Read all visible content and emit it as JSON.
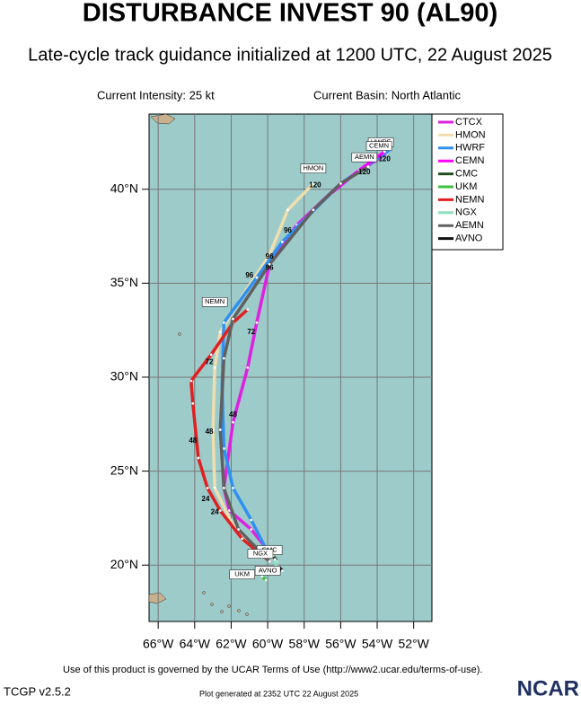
{
  "header": {
    "title": "DISTURBANCE INVEST 90 (AL90)",
    "subtitle": "Late-cycle track guidance initialized at 1200 UTC, 22 August 2025",
    "intensity": "Current Intensity: 25 kt",
    "basin": "Current Basin: North Atlantic"
  },
  "map": {
    "xlim": [
      -66.5,
      -51
    ],
    "ylim": [
      17,
      44
    ],
    "xticks": [
      {
        "value": -66,
        "label": "66°W"
      },
      {
        "value": -64,
        "label": "64°W"
      },
      {
        "value": -62,
        "label": "62°W"
      },
      {
        "value": -60,
        "label": "60°W"
      },
      {
        "value": -58,
        "label": "58°W"
      },
      {
        "value": -56,
        "label": "56°W"
      },
      {
        "value": -54,
        "label": "54°W"
      },
      {
        "value": -52,
        "label": "52°W"
      }
    ],
    "yticks": [
      {
        "value": 20,
        "label": "20°N"
      },
      {
        "value": 25,
        "label": "25°N"
      },
      {
        "value": 30,
        "label": "30°N"
      },
      {
        "value": 35,
        "label": "35°N"
      },
      {
        "value": 40,
        "label": "40°N"
      }
    ],
    "grid": true,
    "tracks": [
      {
        "name": "CTCX",
        "color": "#e020e0",
        "lon": [
          -59.66,
          -60.9,
          -62.1,
          -62.4,
          -61.9,
          -61.1,
          -60.6,
          -59.9,
          -58.4,
          -56.0,
          -53.5
        ],
        "lat": [
          20.38,
          21.9,
          22.9,
          24.1,
          27.6,
          30.5,
          32.9,
          36.0,
          38.1,
          40.3,
          41.9
        ]
      },
      {
        "name": "HMON",
        "color": "#efdfb0",
        "lon": [
          -59.9,
          -61.9,
          -62.9,
          -63.0,
          -62.9,
          -62.6,
          -61.4,
          -59.9,
          -58.9,
          -57.5
        ],
        "lat": [
          20.2,
          22.1,
          24.1,
          27.2,
          30.5,
          32.4,
          34.3,
          36.5,
          38.9,
          40.3
        ]
      },
      {
        "name": "HWRF",
        "color": "#3090f0",
        "lon": [
          -59.9,
          -60.9,
          -61.9,
          -62.4,
          -62.5,
          -62.4,
          -60.6,
          -59.2,
          -56.0,
          -53.3
        ],
        "lat": [
          20.5,
          22.4,
          24.1,
          26.2,
          29.5,
          32.9,
          35.3,
          37.2,
          40.3,
          42.1
        ]
      },
      {
        "name": "CEMN",
        "color": "#ff00ff",
        "lon": [
          -56.5,
          -55.0,
          -53.6
        ],
        "lat": [
          39.8,
          41.0,
          42.0
        ]
      },
      {
        "name": "CMC",
        "color": "#205020",
        "lon": [
          -59.7,
          -59.5
        ],
        "lat": [
          20.5,
          20.2
        ]
      },
      {
        "name": "UKM",
        "color": "#40c040",
        "lon": [
          -60.3,
          -60.1
        ],
        "lat": [
          19.4,
          19.2
        ]
      },
      {
        "name": "NEMN",
        "color": "#e02020",
        "lon": [
          -59.9,
          -61.4,
          -62.6,
          -63.3,
          -63.8,
          -64.1,
          -64.2,
          -63.1,
          -61.9,
          -61.1
        ],
        "lat": [
          20.2,
          21.4,
          22.9,
          24.1,
          25.7,
          28.6,
          29.8,
          31.2,
          32.9,
          33.6
        ]
      },
      {
        "name": "NGX",
        "color": "#90e0c0",
        "lon": [
          -59.6,
          -59.5
        ],
        "lat": [
          20.3,
          19.8
        ]
      },
      {
        "name": "AEMN",
        "color": "#606060",
        "lon": [
          -59.9,
          -61.6,
          -62.4,
          -62.6,
          -62.4,
          -61.9,
          -59.9,
          -57.5,
          -56.0,
          -54.5
        ],
        "lat": [
          20.2,
          21.9,
          24.1,
          27.2,
          31.0,
          33.1,
          36.0,
          38.9,
          40.3,
          41.2
        ]
      },
      {
        "name": "AVNO",
        "color": "#101010",
        "lon": [
          -59.4,
          -59.2
        ],
        "lat": [
          19.9,
          19.7
        ]
      }
    ],
    "hour_labels": [
      {
        "hour": 120,
        "lon": -57.4,
        "lat": 40.2
      },
      {
        "hour": 120,
        "lon": -54.7,
        "lat": 40.9
      },
      {
        "hour": 120,
        "lon": -53.6,
        "lat": 41.6
      },
      {
        "hour": 96,
        "lon": -58.9,
        "lat": 37.8
      },
      {
        "hour": 96,
        "lon": -59.9,
        "lat": 36.4
      },
      {
        "hour": 96,
        "lon": -59.9,
        "lat": 35.8
      },
      {
        "hour": 96,
        "lon": -61.0,
        "lat": 35.4
      },
      {
        "hour": 72,
        "lon": -60.9,
        "lat": 32.4
      },
      {
        "hour": 72,
        "lon": -63.2,
        "lat": 30.8
      },
      {
        "hour": 48,
        "lon": -61.9,
        "lat": 28.0
      },
      {
        "hour": 48,
        "lon": -64.1,
        "lat": 26.6
      },
      {
        "hour": 48,
        "lon": -63.2,
        "lat": 27.1
      },
      {
        "hour": 24,
        "lon": -63.4,
        "lat": 23.5
      },
      {
        "hour": 24,
        "lon": -62.9,
        "lat": 22.8
      }
    ],
    "model_tags": [
      {
        "text": "HMON",
        "lon": -57.5,
        "lat": 41.1
      },
      {
        "text": "HWRF",
        "lon": -53.8,
        "lat": 42.5
      },
      {
        "text": "CEMN",
        "lon": -53.9,
        "lat": 42.3
      },
      {
        "text": "AEMN",
        "lon": -54.7,
        "lat": 41.7
      },
      {
        "text": "NEMN",
        "lon": -62.9,
        "lat": 34.0
      },
      {
        "text": "CMC",
        "lon": -59.9,
        "lat": 20.8
      },
      {
        "text": "NGX",
        "lon": -60.4,
        "lat": 20.6
      },
      {
        "text": "AVNO",
        "lon": -60.0,
        "lat": 19.7
      },
      {
        "text": "UKM",
        "lon": -61.4,
        "lat": 19.5
      }
    ]
  },
  "footer": {
    "terms": "Use of this product is governed by the UCAR Terms of Use (http://www2.ucar.edu/terms-of-use).",
    "version": "TCGP v2.5.2",
    "generated": "Plot generated at 2352 UTC  22 August 2025",
    "logo": "NCAR"
  }
}
